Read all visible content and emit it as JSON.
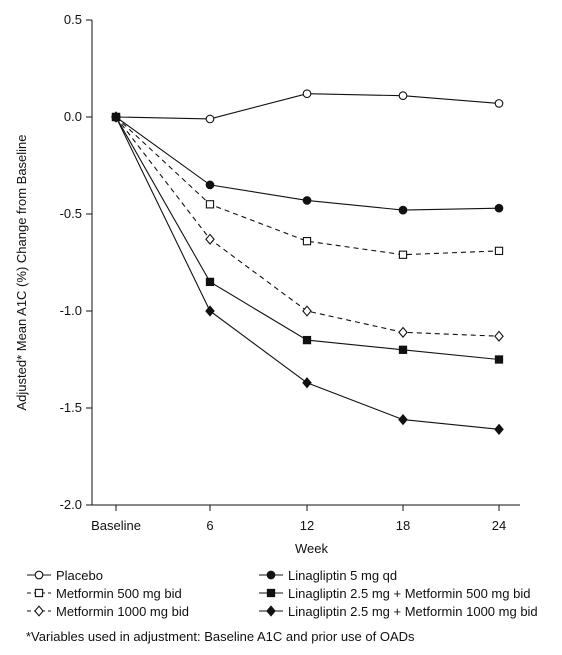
{
  "chart_data": {
    "type": "line",
    "title": "",
    "xlabel": "Week",
    "ylabel": "Adjusted* Mean A1C (%) Change from Baseline",
    "categories": [
      "Baseline",
      "6",
      "12",
      "18",
      "24"
    ],
    "x": [
      0,
      6,
      12,
      18,
      24
    ],
    "ylim": [
      -2.0,
      0.5
    ],
    "yticks": [
      "0.5",
      "0.0",
      "-0.5",
      "-1.0",
      "-1.5",
      "-2.0"
    ],
    "ytick_values": [
      0.5,
      0.0,
      -0.5,
      -1.0,
      -1.5,
      -2.0
    ],
    "grid": false,
    "legend_position": "bottom",
    "series": [
      {
        "name": "Placebo",
        "values": [
          0.0,
          -0.01,
          0.12,
          0.11,
          0.07
        ],
        "marker": "circle-open",
        "dash": false
      },
      {
        "name": "Metformin 500 mg bid",
        "values": [
          0.0,
          -0.45,
          -0.64,
          -0.71,
          -0.69
        ],
        "marker": "square-open",
        "dash": true
      },
      {
        "name": "Metformin 1000 mg bid",
        "values": [
          0.0,
          -0.63,
          -1.0,
          -1.11,
          -1.13
        ],
        "marker": "diamond-open",
        "dash": true
      },
      {
        "name": "Linagliptin 5 mg qd",
        "values": [
          0.0,
          -0.35,
          -0.43,
          -0.48,
          -0.47
        ],
        "marker": "circle-filled",
        "dash": false
      },
      {
        "name": "Linagliptin 2.5 mg + Metformin 500 mg bid",
        "values": [
          0.0,
          -0.85,
          -1.15,
          -1.2,
          -1.25
        ],
        "marker": "square-filled",
        "dash": false
      },
      {
        "name": "Linagliptin 2.5 mg + Metformin 1000 mg bid",
        "values": [
          0.0,
          -1.0,
          -1.37,
          -1.56,
          -1.61
        ],
        "marker": "diamond-filled",
        "dash": false
      }
    ]
  },
  "legend": {
    "items": [
      {
        "label": "Placebo",
        "marker": "circle-open",
        "dash": false
      },
      {
        "label": "Linagliptin 5 mg qd",
        "marker": "circle-filled",
        "dash": false
      },
      {
        "label": "Metformin 500 mg bid",
        "marker": "square-open",
        "dash": true
      },
      {
        "label": "Linagliptin 2.5 mg + Metformin 500 mg bid",
        "marker": "square-filled",
        "dash": false
      },
      {
        "label": "Metformin 1000 mg bid",
        "marker": "diamond-open",
        "dash": true
      },
      {
        "label": "Linagliptin 2.5 mg + Metformin 1000 mg bid",
        "marker": "diamond-filled",
        "dash": false
      }
    ]
  },
  "footnote": "*Variables used in adjustment: Baseline A1C and prior use of OADs"
}
